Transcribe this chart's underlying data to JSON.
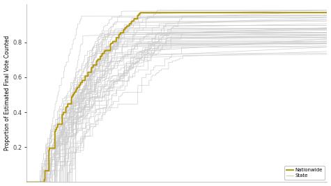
{
  "ylabel": "Proportion of Estimated Final Vote Counted",
  "yticks": [
    0.2,
    0.4,
    0.6,
    0.8
  ],
  "ylim": [
    0.0,
    1.02
  ],
  "xlim": [
    0,
    1
  ],
  "state_color": "#cccccc",
  "national_color": "#b5960a",
  "state_linewidth": 0.5,
  "national_linewidth": 1.4,
  "n_states": 51,
  "background_color": "#ffffff",
  "legend_labels": [
    "Nationwide",
    "State"
  ]
}
